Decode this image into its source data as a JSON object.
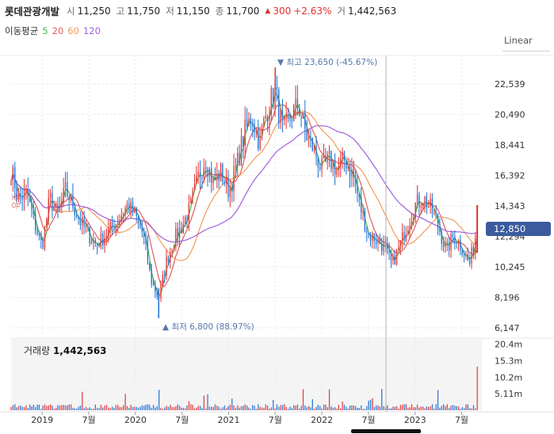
{
  "header": {
    "stock_name": "롯데관광개발",
    "open_label": "시",
    "open": "11,250",
    "high_label": "고",
    "high": "11,750",
    "low_label": "저",
    "low": "11,150",
    "close_label": "종",
    "close": "11,700",
    "change": "300",
    "change_pct": "+2.63%",
    "volume_label": "거",
    "volume": "1,442,563"
  },
  "ma": {
    "label": "이동평균",
    "p5": "5",
    "p20": "20",
    "p60": "60",
    "p120": "120",
    "colors": {
      "p5": "#4caf50",
      "p20": "#e05c5c",
      "p60": "#f29a5c",
      "p120": "#a05fe0"
    }
  },
  "scale_button": "Linear",
  "annotations": {
    "max": "최고 23,650 (-45.67%)",
    "min": "최저 6,800 (88.97%)",
    "side_label": "유증"
  },
  "current_price_tag": "12,850",
  "volume_title": "거래량",
  "volume_value": "1,442,563",
  "colors": {
    "up": "#e03131",
    "down": "#1c6fd1",
    "current_tag": "#3b5b9e"
  },
  "chart_data": {
    "type": "candlestick",
    "y_scale": "linear",
    "y_ticks": [
      "22,539",
      "20,490",
      "18,441",
      "16,392",
      "14,343",
      "12,294",
      "10,245",
      "8,196",
      "6,147"
    ],
    "y_tick_values": [
      22539,
      20490,
      18441,
      16392,
      14343,
      12294,
      10245,
      8196,
      6147
    ],
    "ylim": [
      6147,
      24000
    ],
    "x_ticks": [
      "2019",
      "7월",
      "2020",
      "7월",
      "2021",
      "7월",
      "2022",
      "7월",
      "2023",
      "7월"
    ],
    "x_tick_dates": [
      "2019-01",
      "2019-07",
      "2020-01",
      "2020-07",
      "2021-01",
      "2021-07",
      "2022-01",
      "2022-07",
      "2023-01",
      "2023-07"
    ],
    "x_range": [
      "2018-09",
      "2023-09"
    ],
    "close_path": [
      [
        "2018-09",
        16800
      ],
      [
        "2018-10",
        14800
      ],
      [
        "2018-11",
        15200
      ],
      [
        "2018-12",
        13200
      ],
      [
        "2019-01",
        11600
      ],
      [
        "2019-02",
        14900
      ],
      [
        "2019-03",
        13700
      ],
      [
        "2019-04",
        15400
      ],
      [
        "2019-05",
        14400
      ],
      [
        "2019-06",
        13200
      ],
      [
        "2019-07",
        12400
      ],
      [
        "2019-08",
        11700
      ],
      [
        "2019-09",
        12300
      ],
      [
        "2019-10",
        12900
      ],
      [
        "2019-11",
        13600
      ],
      [
        "2019-12",
        14400
      ],
      [
        "2020-01",
        13700
      ],
      [
        "2020-02",
        12400
      ],
      [
        "2020-03",
        9400
      ],
      [
        "2020-04",
        8100
      ],
      [
        "2020-05",
        10600
      ],
      [
        "2020-06",
        12100
      ],
      [
        "2020-07",
        13000
      ],
      [
        "2020-08",
        14100
      ],
      [
        "2020-09",
        16100
      ],
      [
        "2020-10",
        17600
      ],
      [
        "2020-11",
        15900
      ],
      [
        "2020-12",
        16600
      ],
      [
        "2021-01",
        15400
      ],
      [
        "2021-02",
        16900
      ],
      [
        "2021-03",
        19200
      ],
      [
        "2021-04",
        20400
      ],
      [
        "2021-05",
        18600
      ],
      [
        "2021-06",
        20900
      ],
      [
        "2021-07",
        22000
      ],
      [
        "2021-08",
        19300
      ],
      [
        "2021-09",
        20400
      ],
      [
        "2021-10",
        21100
      ],
      [
        "2021-11",
        19100
      ],
      [
        "2021-12",
        18100
      ],
      [
        "2022-01",
        16800
      ],
      [
        "2022-02",
        17400
      ],
      [
        "2022-03",
        16800
      ],
      [
        "2022-04",
        17500
      ],
      [
        "2022-05",
        16400
      ],
      [
        "2022-06",
        14200
      ],
      [
        "2022-07",
        12400
      ],
      [
        "2022-08",
        12100
      ],
      [
        "2022-09",
        11600
      ],
      [
        "2022-10",
        10400
      ],
      [
        "2022-11",
        11600
      ],
      [
        "2022-12",
        13100
      ],
      [
        "2023-01",
        14400
      ],
      [
        "2023-02",
        14900
      ],
      [
        "2023-03",
        14200
      ],
      [
        "2023-04",
        13000
      ],
      [
        "2023-05",
        11300
      ],
      [
        "2023-06",
        12400
      ],
      [
        "2023-07",
        11600
      ],
      [
        "2023-08",
        10400
      ],
      [
        "2023-09",
        12850
      ]
    ],
    "max_point": {
      "date": "2021-07",
      "value": 23650
    },
    "min_point": {
      "date": "2020-04",
      "value": 6800
    },
    "volume": {
      "y_ticks": [
        "20.4m",
        "15.3m",
        "10.2m",
        "5.11m"
      ],
      "y_tick_values": [
        20400000,
        15300000,
        10200000,
        5110000
      ],
      "last": 1442563
    }
  }
}
